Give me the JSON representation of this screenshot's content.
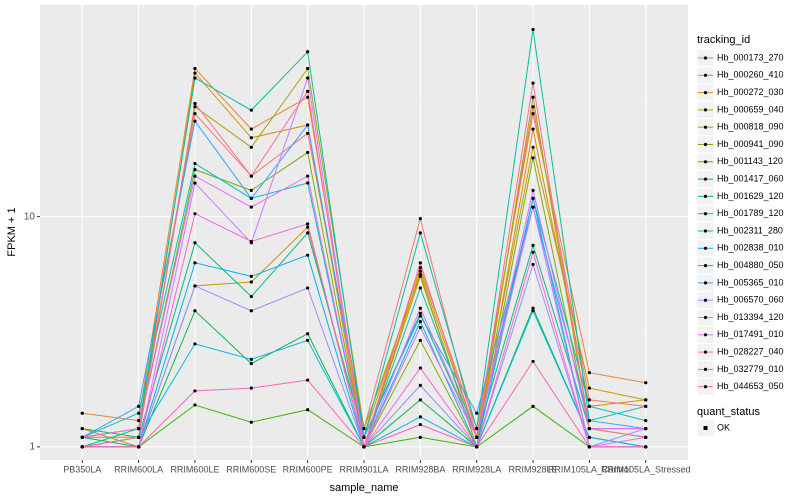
{
  "chart_data": {
    "type": "line",
    "x_label": "sample_name",
    "y_label": "FPKM + 1",
    "log_y": true,
    "grid": true,
    "legend_position": "right",
    "legend_title": "tracking_id",
    "legend2_title": "quant_status",
    "legend2_labels": [
      "OK"
    ],
    "point_color": "#000000",
    "categories": [
      "PB350LA",
      "RRIM600LA",
      "RRIM600LE",
      "RRIM600SE",
      "RRIM600PE",
      "RRIM901LA",
      "RRIM928BA",
      "RRIM928LA",
      "RRIM928LE",
      "RRIM105LA_Control",
      "RRIM105LA_Stressed"
    ],
    "ylim": [
      0.877,
      83
    ],
    "yticks": [
      1,
      10
    ],
    "series": [
      {
        "name": "Hb_000173_270",
        "color": "#F8766D",
        "values": [
          1.1,
          1.2,
          28,
          15,
          23,
          1.2,
          9.8,
          1.1,
          30,
          1.6,
          1.5
        ]
      },
      {
        "name": "Hb_000260_410",
        "color": "#EA8331",
        "values": [
          1.4,
          1.3,
          44,
          24,
          33,
          1.1,
          6,
          1.2,
          28,
          2.1,
          1.9
        ]
      },
      {
        "name": "Hb_000272_030",
        "color": "#D89000",
        "values": [
          1.1,
          1.1,
          42,
          22,
          25,
          1.0,
          5.5,
          1.0,
          24,
          1.5,
          1.6
        ]
      },
      {
        "name": "Hb_000659_040",
        "color": "#C09B00",
        "values": [
          1.2,
          1.0,
          5,
          5.2,
          9,
          1.0,
          5.8,
          1.1,
          20,
          1.8,
          1.6
        ]
      },
      {
        "name": "Hb_000818_090",
        "color": "#A3A500",
        "values": [
          1.0,
          1.1,
          30,
          20,
          44,
          1.2,
          5.6,
          1.0,
          33,
          1.2,
          1.1
        ]
      },
      {
        "name": "Hb_000941_090",
        "color": "#7CAE00",
        "values": [
          1.1,
          1.2,
          16,
          13,
          19,
          1.0,
          2.9,
          1.0,
          18,
          1.2,
          1.1
        ]
      },
      {
        "name": "Hb_001143_120",
        "color": "#39B600",
        "values": [
          1.0,
          1.0,
          1.52,
          1.28,
          1.45,
          1.0,
          1.1,
          1.0,
          1.5,
          1.0,
          1.0
        ]
      },
      {
        "name": "Hb_001417_060",
        "color": "#00BB4E",
        "values": [
          1.1,
          1.0,
          3.9,
          2.3,
          3.1,
          1.0,
          1.6,
          1.0,
          4.0,
          1.1,
          1.0
        ]
      },
      {
        "name": "Hb_001629_120",
        "color": "#00BF7D",
        "values": [
          1.2,
          1.1,
          7.7,
          4.5,
          8.5,
          1.1,
          3.8,
          1.1,
          7.5,
          1.2,
          1.2
        ]
      },
      {
        "name": "Hb_001789_120",
        "color": "#00C1A3",
        "values": [
          1.0,
          1.2,
          40,
          29,
          52,
          1.1,
          8.5,
          1.2,
          65,
          1.3,
          1.5
        ]
      },
      {
        "name": "Hb_002311_280",
        "color": "#00BFC4",
        "values": [
          1.1,
          1.4,
          17,
          12,
          14,
          1.0,
          4.9,
          1.1,
          12,
          1.5,
          1.3
        ]
      },
      {
        "name": "Hb_002838_010",
        "color": "#00BAE0",
        "values": [
          1.0,
          1.1,
          2.8,
          2.4,
          2.9,
          1.0,
          1.35,
          1.0,
          3.9,
          1.1,
          1.0
        ]
      },
      {
        "name": "Hb_004880_050",
        "color": "#00B0F6",
        "values": [
          1.0,
          1.0,
          6.3,
          5.5,
          6.8,
          1.0,
          3.5,
          1.0,
          12,
          1.0,
          1.0
        ]
      },
      {
        "name": "Hb_005365_010",
        "color": "#35A2FF",
        "values": [
          1.1,
          1.5,
          26,
          12,
          25,
          1.1,
          3.7,
          1.4,
          11,
          1.3,
          1.2
        ]
      },
      {
        "name": "Hb_006570_060",
        "color": "#9590FF",
        "values": [
          1.0,
          1.0,
          5.0,
          3.9,
          4.9,
          1.0,
          1.85,
          1.0,
          6.2,
          1.0,
          1.2
        ]
      },
      {
        "name": "Hb_013394_120",
        "color": "#C77CFF",
        "values": [
          1.0,
          1.0,
          14,
          7.7,
          40,
          1.0,
          4.0,
          1.1,
          11,
          1.0,
          1.1
        ]
      },
      {
        "name": "Hb_017491_010",
        "color": "#E76BF3",
        "values": [
          1.1,
          1.2,
          15,
          11,
          15,
          1.0,
          3.3,
          1.1,
          13,
          1.2,
          1.2
        ]
      },
      {
        "name": "Hb_028227_040",
        "color": "#FA62DB",
        "values": [
          1.0,
          1.0,
          10.3,
          7.8,
          9.3,
          1.0,
          2.2,
          1.0,
          7.0,
          1.0,
          1.0
        ]
      },
      {
        "name": "Hb_032779_010",
        "color": "#FF62BC",
        "values": [
          1.0,
          1.0,
          1.75,
          1.8,
          1.95,
          1.0,
          1.25,
          1.0,
          2.35,
          1.0,
          1.0
        ]
      },
      {
        "name": "Hb_044653_050",
        "color": "#FF6C91",
        "values": [
          1.0,
          1.1,
          31,
          15,
          35,
          1.0,
          6.3,
          1.1,
          38,
          1.2,
          1.1
        ]
      }
    ]
  }
}
